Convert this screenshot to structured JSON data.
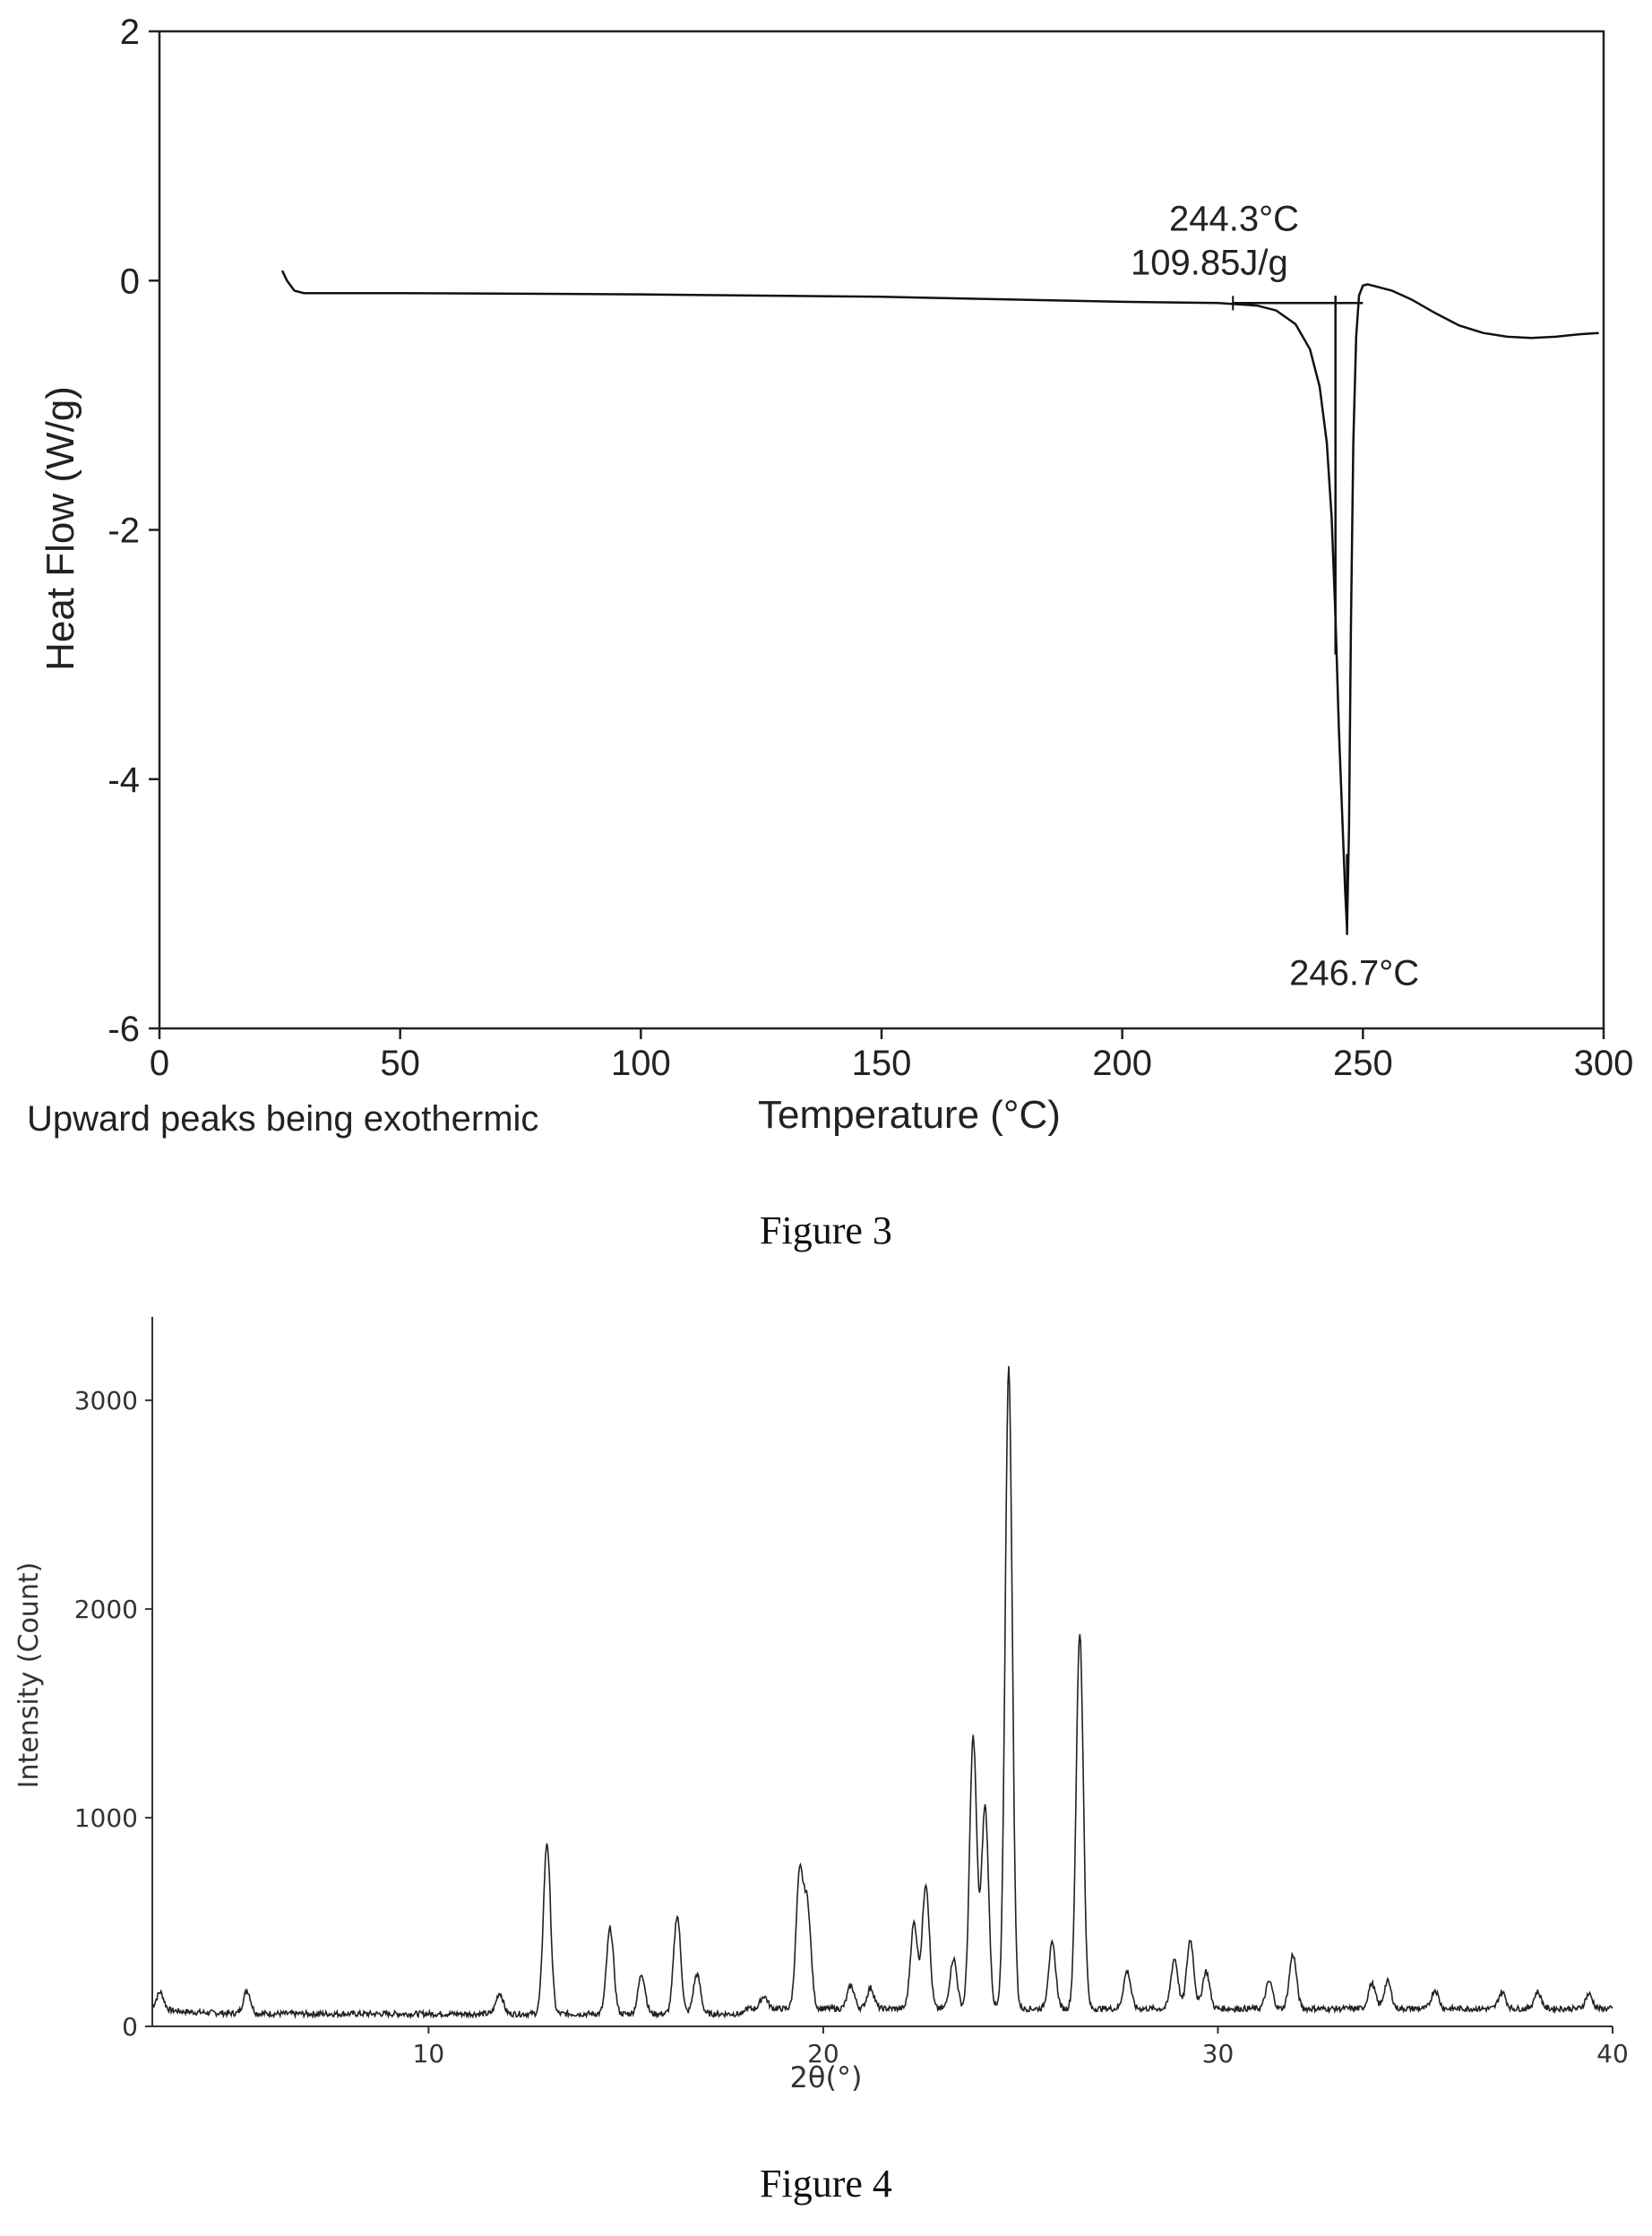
{
  "figures": [
    {
      "caption": "Figure 3"
    },
    {
      "caption": "Figure 4"
    }
  ],
  "chart_data": [
    {
      "type": "line",
      "title": "",
      "xlabel": "Temperature (°C)",
      "ylabel": "Heat Flow (W/g)",
      "footnote": "Upward peaks being exothermic",
      "xlim": [
        0,
        300
      ],
      "ylim": [
        -6,
        2
      ],
      "xticks": [
        0,
        50,
        100,
        150,
        200,
        250,
        300
      ],
      "yticks": [
        2,
        0,
        -2,
        -4,
        -6
      ],
      "grid": false,
      "series": [
        {
          "x": [
            25.5,
            26.5,
            28,
            30,
            50,
            100,
            150,
            200,
            220,
            228,
            232,
            236,
            239,
            241,
            242.5,
            243.5,
            244.3,
            245,
            245.8,
            246.3,
            246.7,
            247.1,
            247.5,
            248,
            248.6,
            249.2,
            250,
            251,
            253,
            256,
            260,
            265,
            270,
            275,
            280,
            285,
            290,
            295,
            299
          ],
          "y": [
            0.08,
            0.0,
            -0.08,
            -0.1,
            -0.1,
            -0.11,
            -0.13,
            -0.17,
            -0.18,
            -0.2,
            -0.24,
            -0.35,
            -0.55,
            -0.85,
            -1.3,
            -1.9,
            -2.7,
            -3.6,
            -4.4,
            -4.9,
            -5.2,
            -4.4,
            -2.8,
            -1.3,
            -0.45,
            -0.12,
            -0.04,
            -0.03,
            -0.05,
            -0.08,
            -0.15,
            -0.26,
            -0.36,
            -0.42,
            -0.45,
            -0.46,
            -0.45,
            -0.43,
            -0.42
          ]
        }
      ],
      "annotations": [
        {
          "text": "244.3°C",
          "x": 244.3,
          "y": 0.5
        },
        {
          "text": "109.85J/g",
          "x": 244.3,
          "y": 0.15
        },
        {
          "text": "246.7°C",
          "x": 246.7,
          "y": -5.55
        }
      ],
      "baseline": {
        "x": [
          223,
          250
        ],
        "y": [
          -0.18,
          -0.18
        ]
      },
      "onset_marker_x": 244.3,
      "peak_x": 246.7
    },
    {
      "type": "line",
      "title": "",
      "xlabel": "2θ(°)",
      "ylabel": "Intensity (Count)",
      "xlim": [
        3,
        40
      ],
      "ylim": [
        0,
        3400
      ],
      "xticks": [
        10,
        20,
        30,
        40
      ],
      "yticks": [
        0,
        1000,
        2000,
        3000
      ],
      "grid": false,
      "baseline_counts": 60,
      "peaks": [
        {
          "two_theta": 3.2,
          "intensity": 140
        },
        {
          "two_theta": 5.4,
          "intensity": 170
        },
        {
          "two_theta": 11.8,
          "intensity": 160
        },
        {
          "two_theta": 13.0,
          "intensity": 880
        },
        {
          "two_theta": 14.6,
          "intensity": 470
        },
        {
          "two_theta": 15.4,
          "intensity": 250
        },
        {
          "two_theta": 16.3,
          "intensity": 530
        },
        {
          "two_theta": 16.8,
          "intensity": 250
        },
        {
          "two_theta": 18.5,
          "intensity": 120
        },
        {
          "two_theta": 19.4,
          "intensity": 690
        },
        {
          "two_theta": 19.6,
          "intensity": 540
        },
        {
          "two_theta": 20.7,
          "intensity": 170
        },
        {
          "two_theta": 21.2,
          "intensity": 160
        },
        {
          "two_theta": 22.3,
          "intensity": 470
        },
        {
          "two_theta": 22.6,
          "intensity": 660
        },
        {
          "two_theta": 23.3,
          "intensity": 300
        },
        {
          "two_theta": 23.8,
          "intensity": 1360
        },
        {
          "two_theta": 24.1,
          "intensity": 1030
        },
        {
          "two_theta": 24.7,
          "intensity": 3130
        },
        {
          "two_theta": 25.8,
          "intensity": 370
        },
        {
          "two_theta": 26.5,
          "intensity": 1860
        },
        {
          "two_theta": 27.7,
          "intensity": 240
        },
        {
          "two_theta": 28.9,
          "intensity": 300
        },
        {
          "two_theta": 29.3,
          "intensity": 390
        },
        {
          "two_theta": 29.7,
          "intensity": 240
        },
        {
          "two_theta": 31.3,
          "intensity": 190
        },
        {
          "two_theta": 31.9,
          "intensity": 320
        },
        {
          "two_theta": 33.9,
          "intensity": 180
        },
        {
          "two_theta": 34.3,
          "intensity": 190
        },
        {
          "two_theta": 35.5,
          "intensity": 150
        },
        {
          "two_theta": 37.2,
          "intensity": 140
        },
        {
          "two_theta": 38.1,
          "intensity": 140
        },
        {
          "two_theta": 39.4,
          "intensity": 130
        }
      ]
    }
  ]
}
